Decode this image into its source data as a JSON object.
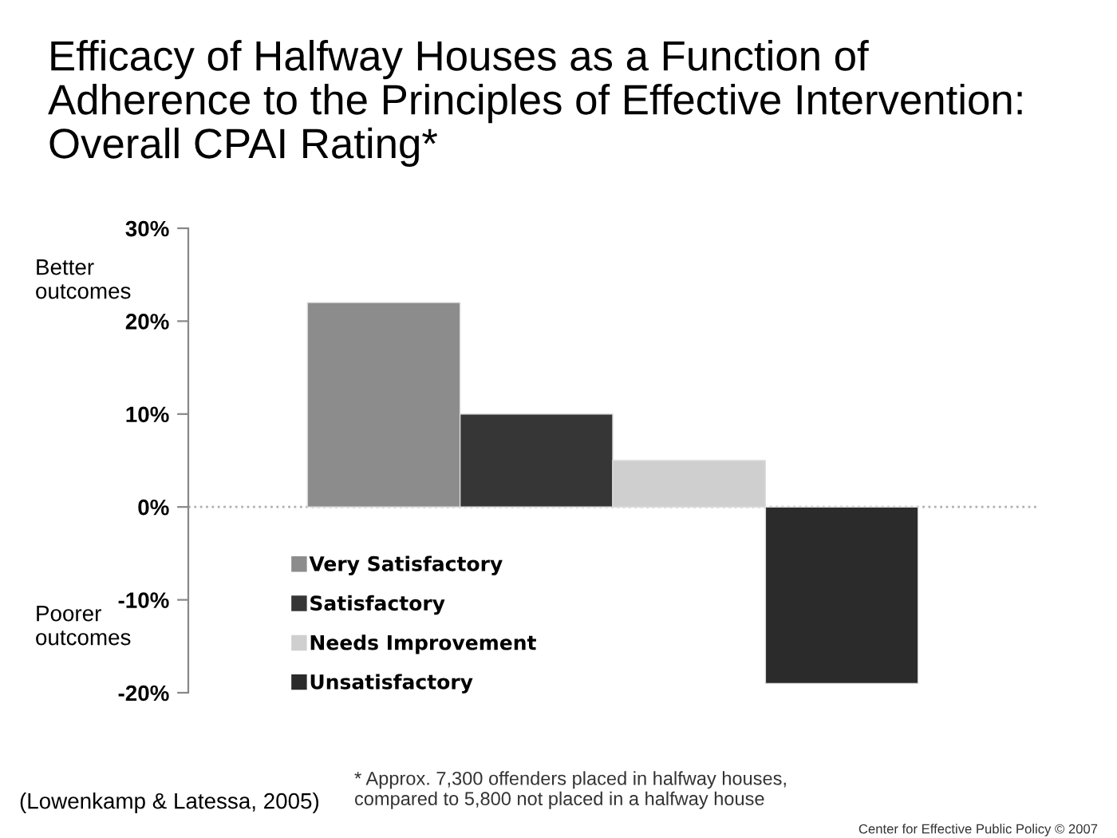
{
  "chart_data": {
    "type": "bar",
    "title": "Efficacy of Halfway Houses as a Function of\nAdherence to the Principles of Effective Intervention:\nOverall CPAI Rating*",
    "categories": [
      null,
      null,
      null,
      null
    ],
    "series": [
      {
        "name": "Very Satisfactory",
        "color": "#8c8c8c",
        "values": [
          22,
          null,
          null,
          null
        ]
      },
      {
        "name": "Satisfactory",
        "color": "#363636",
        "values": [
          null,
          10,
          null,
          null
        ]
      },
      {
        "name": "Needs Improvement",
        "color": "#cfcfcf",
        "values": [
          null,
          null,
          5,
          null
        ]
      },
      {
        "name": "Unsatisfactory",
        "color": "#2b2b2b",
        "values": [
          null,
          null,
          null,
          -19
        ]
      }
    ],
    "ylim": [
      -20,
      30
    ],
    "yticks": [
      {
        "value": -20,
        "label": "-20%"
      },
      {
        "value": -10,
        "label": "-10%"
      },
      {
        "value": 0,
        "label": "0%"
      },
      {
        "value": 10,
        "label": "10%"
      },
      {
        "value": 20,
        "label": "20%"
      },
      {
        "value": 30,
        "label": "30%"
      }
    ],
    "ref_lines": [
      {
        "axis": "y",
        "value": 0,
        "color": "#b0b0b0",
        "line_style": "dotted"
      }
    ],
    "legend": "bottom left",
    "grid": false,
    "annotations": [
      "Better\noutcomes",
      "Poorer\noutcomes",
      "(Lowenkamp & Latessa, 2005)",
      "* Approx. 7,300 offenders placed in halfway houses,\ncompared to 5,800 not placed in a halfway house",
      "Center for Effective Public Policy © 2007"
    ]
  }
}
